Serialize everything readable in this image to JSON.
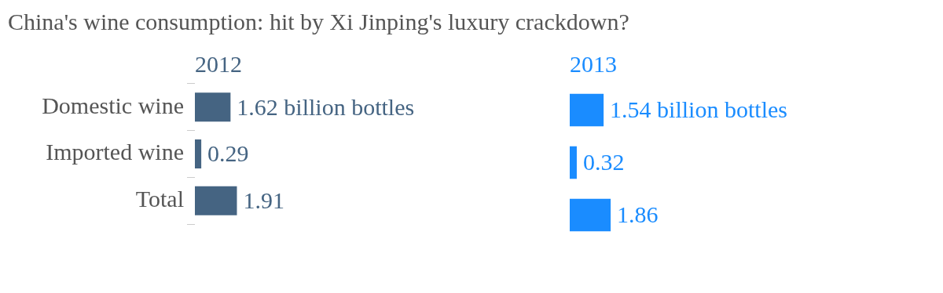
{
  "chart_data": [
    {
      "type": "bar",
      "orientation": "horizontal",
      "title": "China's wine consumption: hit by Xi Jinping's luxury crackdown?",
      "subtitle": "2012",
      "categories": [
        "Domestic wine",
        "Imported wine",
        "Total"
      ],
      "values": [
        1.62,
        0.29,
        1.91
      ],
      "color": "#456482",
      "value_labels": [
        "1.62 billion bottles",
        "0.29",
        "1.91"
      ],
      "tick_labels": "y"
    },
    {
      "type": "bar",
      "orientation": "horizontal",
      "subtitle": "2013",
      "categories": [
        null,
        null,
        null
      ],
      "values": [
        1.54,
        0.32,
        1.86
      ],
      "color": "#1a8cff",
      "value_labels": [
        "1.54 billion bottles",
        "0.32",
        "1.86"
      ],
      "tick_labels": false
    }
  ]
}
